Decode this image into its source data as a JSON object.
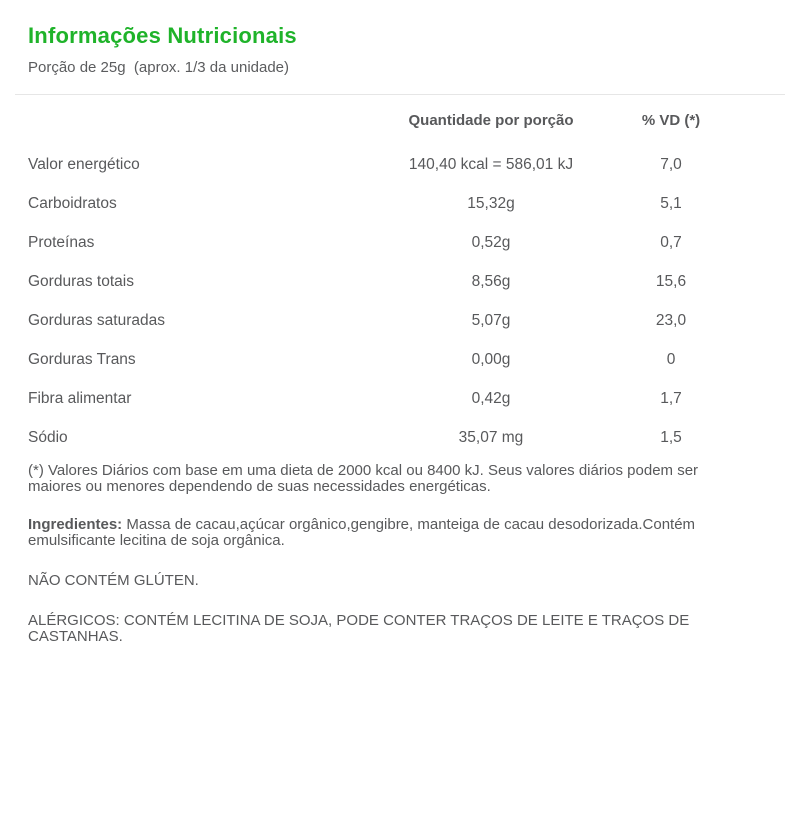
{
  "page": {
    "title": "Informações Nutricionais",
    "subtitle": "Porção de 25g  (aprox. 1/3 da unidade)"
  },
  "table": {
    "headers": {
      "quantity": "Quantidade por porção",
      "dv": "% VD (*)"
    },
    "rows": [
      {
        "label": "Valor energético",
        "quantity": "140,40 kcal = 586,01 kJ",
        "dv": "7,0"
      },
      {
        "label": "Carboidratos",
        "quantity": "15,32g",
        "dv": "5,1"
      },
      {
        "label": "Proteínas",
        "quantity": "0,52g",
        "dv": "0,7"
      },
      {
        "label": "Gorduras totais",
        "quantity": "8,56g",
        "dv": "15,6"
      },
      {
        "label": "Gorduras saturadas",
        "quantity": "5,07g",
        "dv": "23,0"
      },
      {
        "label": "Gorduras Trans",
        "quantity": "0,00g",
        "dv": "0"
      },
      {
        "label": "Fibra alimentar",
        "quantity": "0,42g",
        "dv": "1,7"
      },
      {
        "label": "Sódio",
        "quantity": "35,07 mg",
        "dv": "1,5"
      }
    ]
  },
  "notes": {
    "daily_values": "(*) Valores Diários com base em uma dieta de 2000 kcal ou 8400 kJ. Seus valores diários podem ser maiores ou menores dependendo de suas necessidades energéticas.",
    "ingredients_label": "Ingredientes:",
    "ingredients_text": " Massa de cacau,açúcar orgânico,gengibre, manteiga de cacau desodorizada.Contém emulsificante lecitina de soja orgânica.",
    "gluten": "NÃO CONTÉM GLÚTEN.",
    "allergens": "ALÉRGICOS: CONTÉM LECITINA DE SOJA, PODE CONTER TRAÇOS DE LEITE E TRAÇOS DE CASTANHAS."
  },
  "colors": {
    "accent_green": "#1fb32a",
    "text_gray": "#58595b",
    "divider_gray": "#e6e6e6"
  }
}
